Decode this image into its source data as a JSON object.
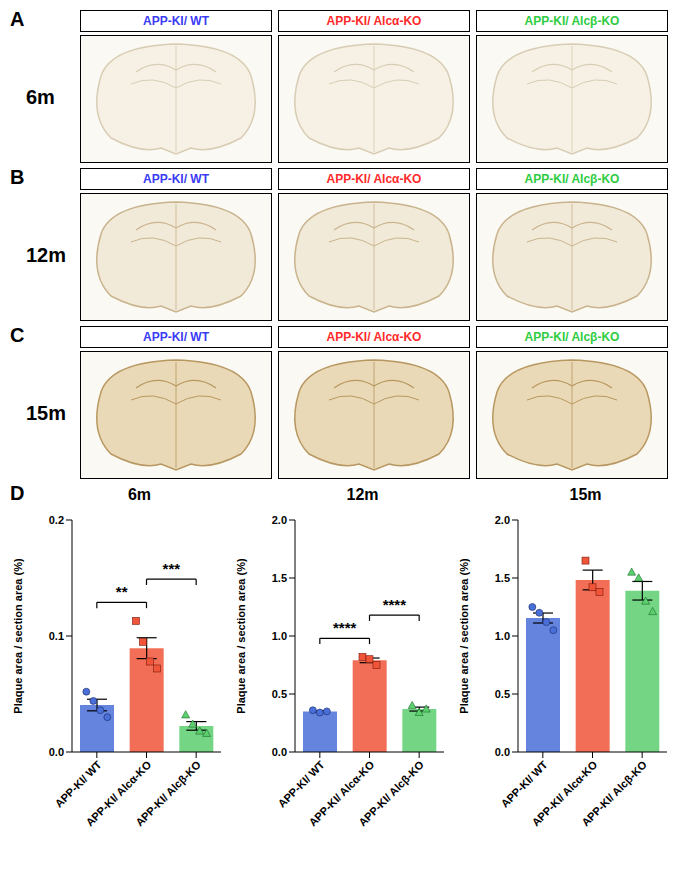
{
  "image_panels": [
    {
      "panel": "A",
      "age": "6m",
      "columns": [
        "APP-KI/ WT",
        "APP-KI/ Alcα-KO",
        "APP-KI/ Alcβ-KO"
      ]
    },
    {
      "panel": "B",
      "age": "12m",
      "columns": [
        "APP-KI/ WT",
        "APP-KI/ Alcα-KO",
        "APP-KI/ Alcβ-KO"
      ]
    },
    {
      "panel": "C",
      "age": "15m",
      "columns": [
        "APP-KI/ WT",
        "APP-KI/ Alcα-KO",
        "APP-KI/ Alcβ-KO"
      ]
    }
  ],
  "header_colors": [
    "#3b3bf5",
    "#ff2a2a",
    "#2ecc40"
  ],
  "chart_panel": "D",
  "chart_data": [
    {
      "type": "bar",
      "title": "6m",
      "y_label": "Plaque area / section area (%)",
      "categories": [
        "APP-KI/ WT",
        "APP-KI/ Alcα-KO",
        "APP-KI/ Alcβ-KO"
      ],
      "values": [
        0.0405,
        0.0895,
        0.0225
      ],
      "errors": [
        0.005,
        0.009,
        0.0037
      ],
      "points": [
        [
          0.052,
          0.044,
          0.036,
          0.03
        ],
        [
          0.113,
          0.095,
          0.078,
          0.072
        ],
        [
          0.032,
          0.024,
          0.018,
          0.016
        ]
      ],
      "colors": [
        "#4a6fd8",
        "#f0553a",
        "#5ccf6e"
      ],
      "ylim": [
        0,
        0.2
      ],
      "yticks": [
        {
          "value": 0,
          "label": "0.0"
        },
        0.1,
        0.2
      ],
      "significance": [
        {
          "from": 0,
          "to": 1,
          "label": "**"
        },
        {
          "from": 1,
          "to": 2,
          "label": "***"
        }
      ]
    },
    {
      "type": "bar",
      "title": "12m",
      "y_label": "Plaque area / section area (%)",
      "categories": [
        "APP-KI/ WT",
        "APP-KI/ Alcα-KO",
        "APP-KI/ Alcβ-KO"
      ],
      "values": [
        0.35,
        0.79,
        0.37
      ],
      "errors": [
        0.006,
        0.02,
        0.017
      ],
      "points": [
        [
          0.36,
          0.34,
          0.35
        ],
        [
          0.82,
          0.8,
          0.75
        ],
        [
          0.4,
          0.34,
          0.37
        ]
      ],
      "colors": [
        "#4a6fd8",
        "#f0553a",
        "#5ccf6e"
      ],
      "ylim": [
        0,
        2
      ],
      "yticks": [
        {
          "value": 0,
          "label": "0.0"
        },
        0.5,
        {
          "value": 1,
          "label": "1.0"
        },
        1.5,
        {
          "value": 2,
          "label": "2.0"
        }
      ],
      "significance": [
        {
          "from": 0,
          "to": 1,
          "label": "****"
        },
        {
          "from": 1,
          "to": 2,
          "label": "****"
        }
      ]
    },
    {
      "type": "bar",
      "title": "15m",
      "y_label": "Plaque area / section area (%)",
      "categories": [
        "APP-KI/ WT",
        "APP-KI/ Alcα-KO",
        "APP-KI/ Alcβ-KO"
      ],
      "values": [
        1.155,
        1.483,
        1.39
      ],
      "errors": [
        0.043,
        0.085,
        0.08
      ],
      "points": [
        [
          1.25,
          1.2,
          1.12,
          1.05
        ],
        [
          1.65,
          1.42,
          1.38
        ],
        [
          1.55,
          1.5,
          1.3,
          1.21
        ]
      ],
      "colors": [
        "#4a6fd8",
        "#f0553a",
        "#5ccf6e"
      ],
      "ylim": [
        0,
        2
      ],
      "yticks": [
        {
          "value": 0,
          "label": "0.0"
        },
        0.5,
        {
          "value": 1,
          "label": "1.0"
        },
        1.5,
        {
          "value": 2,
          "label": "2.0"
        }
      ],
      "significance": []
    }
  ]
}
